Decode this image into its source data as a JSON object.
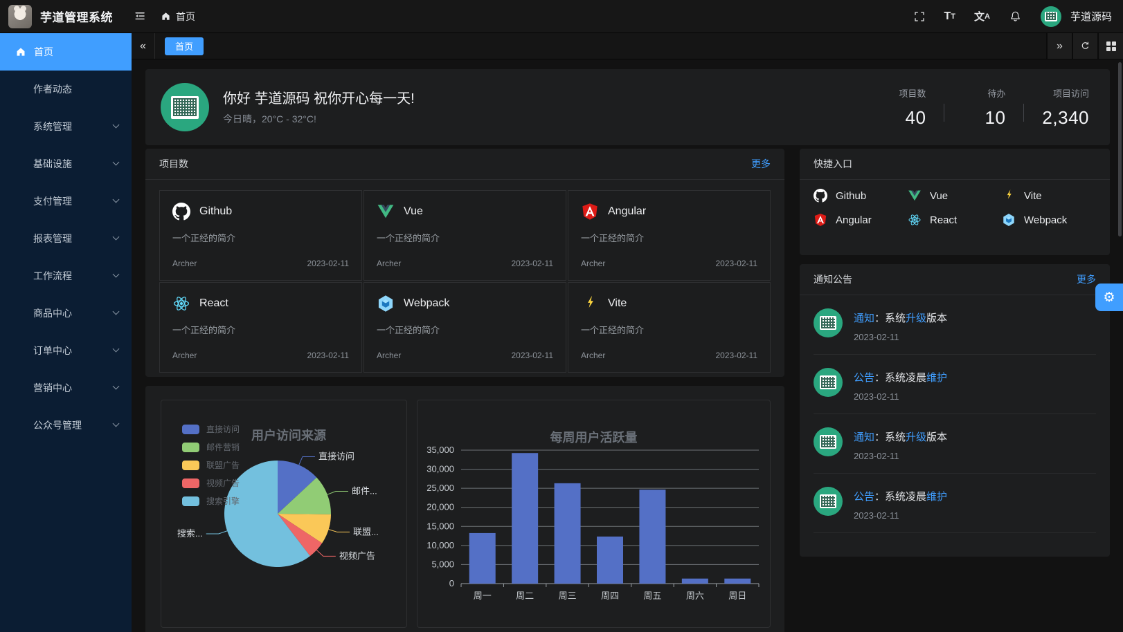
{
  "topbar": {
    "app_title": "芋道管理系统",
    "breadcrumb_home": "首页",
    "username": "芋道源码",
    "font_icon": {
      "big": "T",
      "small": "T"
    },
    "lang_icon": {
      "cn": "文",
      "latin": "A"
    }
  },
  "tabbar": {
    "collapse_left": "«",
    "collapse_right": "»",
    "active_tab": "首页"
  },
  "misc": {
    "gear_glyph": "⚙"
  },
  "sidebar": {
    "items": [
      {
        "label": "首页",
        "active": true,
        "has_children": false
      },
      {
        "label": "作者动态",
        "active": false,
        "has_children": false
      },
      {
        "label": "系统管理",
        "active": false,
        "has_children": true
      },
      {
        "label": "基础设施",
        "active": false,
        "has_children": true
      },
      {
        "label": "支付管理",
        "active": false,
        "has_children": true
      },
      {
        "label": "报表管理",
        "active": false,
        "has_children": true
      },
      {
        "label": "工作流程",
        "active": false,
        "has_children": true
      },
      {
        "label": "商品中心",
        "active": false,
        "has_children": true
      },
      {
        "label": "订单中心",
        "active": false,
        "has_children": true
      },
      {
        "label": "营销中心",
        "active": false,
        "has_children": true
      },
      {
        "label": "公众号管理",
        "active": false,
        "has_children": true
      }
    ]
  },
  "welcome": {
    "greeting": "你好 芋道源码 祝你开心每一天!",
    "weather": "今日晴，20°C - 32°C!",
    "stats": [
      {
        "label": "项目数",
        "value": "40"
      },
      {
        "label": "待办",
        "value": "10"
      },
      {
        "label": "项目访问",
        "value": "2,340"
      }
    ]
  },
  "projects": {
    "title": "项目数",
    "more": "更多",
    "items": [
      {
        "name": "Github",
        "desc": "一个正经的简介",
        "author": "Archer",
        "date": "2023-02-11"
      },
      {
        "name": "Vue",
        "desc": "一个正经的简介",
        "author": "Archer",
        "date": "2023-02-11"
      },
      {
        "name": "Angular",
        "desc": "一个正经的简介",
        "author": "Archer",
        "date": "2023-02-11"
      },
      {
        "name": "React",
        "desc": "一个正经的简介",
        "author": "Archer",
        "date": "2023-02-11"
      },
      {
        "name": "Webpack",
        "desc": "一个正经的简介",
        "author": "Archer",
        "date": "2023-02-11"
      },
      {
        "name": "Vite",
        "desc": "一个正经的简介",
        "author": "Archer",
        "date": "2023-02-11"
      }
    ]
  },
  "shortcuts": {
    "title": "快捷入口",
    "items": [
      {
        "label": "Github"
      },
      {
        "label": "Vue"
      },
      {
        "label": "Vite"
      },
      {
        "label": "Angular"
      },
      {
        "label": "React"
      },
      {
        "label": "Webpack"
      }
    ]
  },
  "notices": {
    "title": "通知公告",
    "more": "更多",
    "items": [
      {
        "segments": [
          {
            "t": "通知"
          },
          {
            "t": "：系统"
          },
          {
            "t": "升级"
          },
          {
            "t": "版本"
          }
        ],
        "date": "2023-02-11"
      },
      {
        "segments": [
          {
            "t": "公告"
          },
          {
            "t": "：系统凌晨"
          },
          {
            "t": "维护"
          }
        ],
        "date": "2023-02-11"
      },
      {
        "segments": [
          {
            "t": "通知"
          },
          {
            "t": "：系统"
          },
          {
            "t": "升级"
          },
          {
            "t": "版本"
          }
        ],
        "date": "2023-02-11"
      },
      {
        "segments": [
          {
            "t": "公告"
          },
          {
            "t": "：系统凌晨"
          },
          {
            "t": "维护"
          }
        ],
        "date": "2023-02-11"
      }
    ]
  },
  "chart_data": [
    {
      "type": "pie",
      "title": "用户访问来源",
      "legend_position": "top-left",
      "legend": [
        "直接访问",
        "邮件营销",
        "联盟广告",
        "视频广告",
        "搜索引擎"
      ],
      "labels_shown": [
        "直接访问",
        "邮件...",
        "联盟...",
        "视频广告",
        "搜索..."
      ],
      "series": [
        {
          "name": "直接访问",
          "value": 335
        },
        {
          "name": "邮件营销",
          "value": 310
        },
        {
          "name": "联盟广告",
          "value": 234
        },
        {
          "name": "视频广告",
          "value": 135
        },
        {
          "name": "搜索引擎",
          "value": 1548
        }
      ],
      "colors": [
        "#5470c6",
        "#91cc75",
        "#fac858",
        "#ee6666",
        "#73c0de"
      ]
    },
    {
      "type": "bar",
      "title": "每周用户活跃量",
      "categories": [
        "周一",
        "周二",
        "周三",
        "周四",
        "周五",
        "周六",
        "周日"
      ],
      "values": [
        13253,
        34235,
        26321,
        12340,
        24643,
        1322,
        1324
      ],
      "ylim": [
        0,
        35000
      ],
      "ytick_step": 5000,
      "bar_color": "#5470c6",
      "grid": true
    }
  ]
}
